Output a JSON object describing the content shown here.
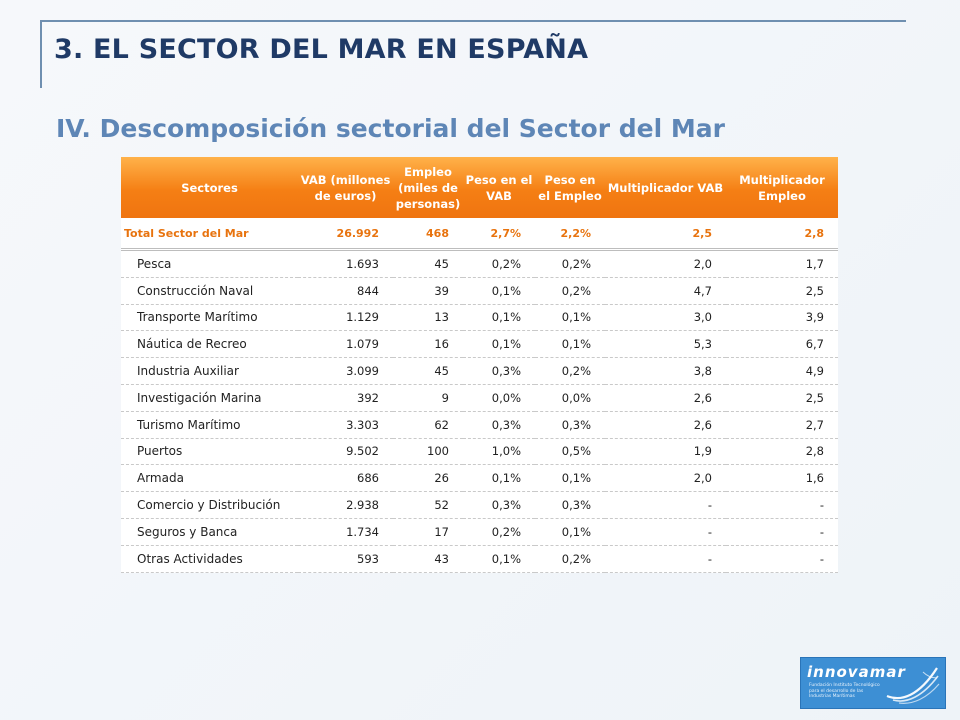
{
  "slide": {
    "title": "3. EL SECTOR DEL MAR EN ESPAÑA",
    "subtitle": "IV. Descomposición sectorial del Sector del Mar"
  },
  "table": {
    "headers": [
      "Sectores",
      "VAB (millones de euros)",
      "Empleo (miles de personas)",
      "Peso en el VAB",
      "Peso en el Empleo",
      "Multiplicador VAB",
      "Multiplicador Empleo"
    ],
    "total": [
      "Total Sector del Mar",
      "26.992",
      "468",
      "2,7%",
      "2,2%",
      "2,5",
      "2,8"
    ],
    "rows": [
      [
        "Pesca",
        "1.693",
        "45",
        "0,2%",
        "0,2%",
        "2,0",
        "1,7"
      ],
      [
        "Construcción Naval",
        "844",
        "39",
        "0,1%",
        "0,2%",
        "4,7",
        "2,5"
      ],
      [
        "Transporte Marítimo",
        "1.129",
        "13",
        "0,1%",
        "0,1%",
        "3,0",
        "3,9"
      ],
      [
        "Náutica de Recreo",
        "1.079",
        "16",
        "0,1%",
        "0,1%",
        "5,3",
        "6,7"
      ],
      [
        "Industria Auxiliar",
        "3.099",
        "45",
        "0,3%",
        "0,2%",
        "3,8",
        "4,9"
      ],
      [
        "Investigación Marina",
        "392",
        "9",
        "0,0%",
        "0,0%",
        "2,6",
        "2,5"
      ],
      [
        "Turismo Marítimo",
        "3.303",
        "62",
        "0,3%",
        "0,3%",
        "2,6",
        "2,7"
      ],
      [
        "Puertos",
        "9.502",
        "100",
        "1,0%",
        "0,5%",
        "1,9",
        "2,8"
      ],
      [
        "Armada",
        "686",
        "26",
        "0,1%",
        "0,1%",
        "2,0",
        "1,6"
      ],
      [
        "Comercio y Distribución",
        "2.938",
        "52",
        "0,3%",
        "0,3%",
        "-",
        "-"
      ],
      [
        "Seguros y Banca",
        "1.734",
        "17",
        "0,2%",
        "0,1%",
        "-",
        "-"
      ],
      [
        "Otras Actividades",
        "593",
        "43",
        "0,1%",
        "0,2%",
        "-",
        "-"
      ]
    ]
  },
  "logo": {
    "wordmark": "innovamar",
    "tagline": "Fundación Instituto Tecnológico para el desarrollo de las Industrias Marítimas"
  },
  "colors": {
    "title": "#1f3a66",
    "subtitle": "#5e86b6",
    "header_orange": "#f57f14",
    "total_orange": "#e8730e",
    "logo_blue": "#3d8fd4"
  }
}
